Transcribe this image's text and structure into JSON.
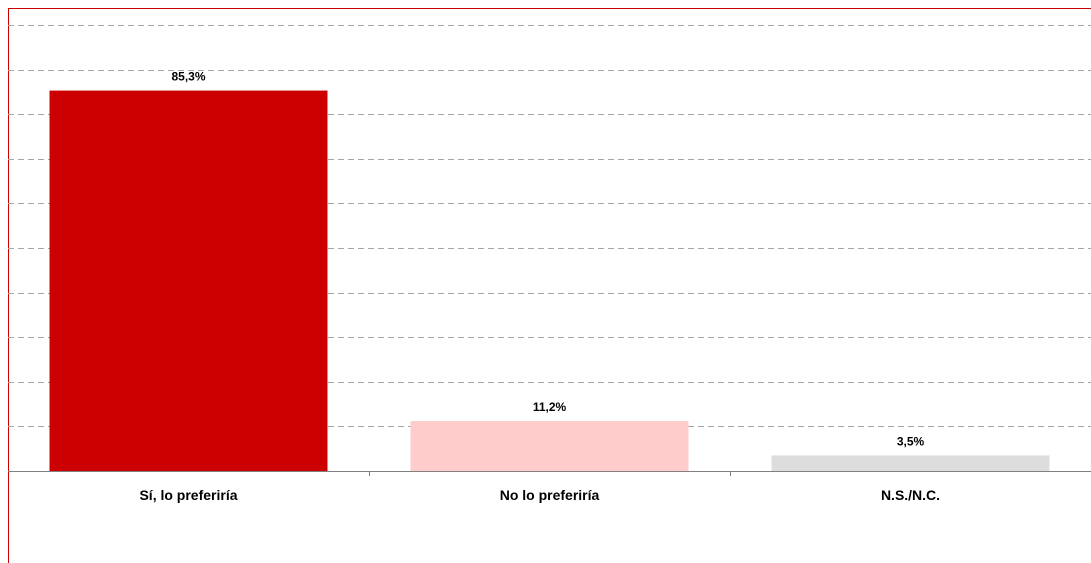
{
  "chart_data": {
    "type": "bar",
    "categories": [
      "Sí, lo preferiría",
      "No lo preferiría",
      "N.S./N.C."
    ],
    "values": [
      85.3,
      11.2,
      3.5
    ],
    "value_labels": [
      "85,3%",
      "11,2%",
      "3,5%"
    ],
    "ylim": [
      0,
      100
    ],
    "grid": true,
    "colors": [
      "#cc0000",
      "#ffcccc",
      "#dddddd"
    ],
    "frame_color": "#cc0000"
  }
}
